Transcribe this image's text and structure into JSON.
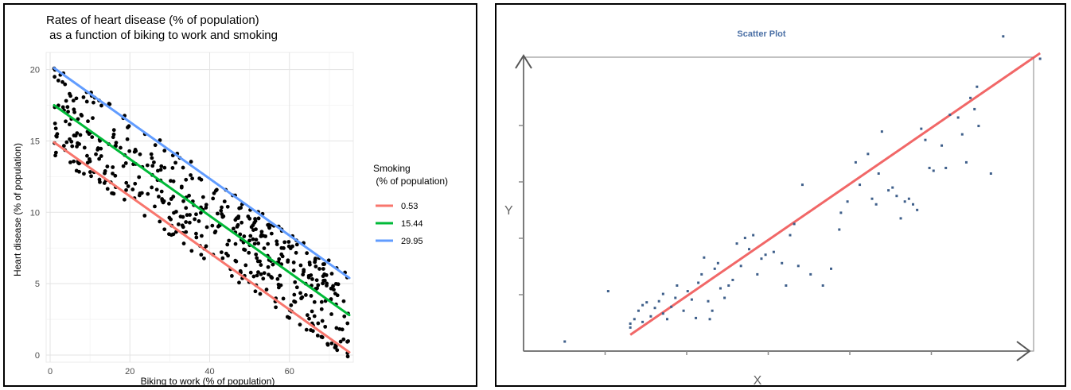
{
  "chart_data": [
    {
      "type": "scatter",
      "title_line1": "Rates of heart disease (% of population)",
      "title_line2": " as a function of biking to work and smoking",
      "xlabel": "Biking to work (% of population)",
      "ylabel": "Heart disease (% of population)",
      "xlim": [
        -1,
        76
      ],
      "ylim": [
        -0.5,
        21.2
      ],
      "xticks": [
        0,
        20,
        40,
        60
      ],
      "xtick_labels": [
        "0",
        "20",
        "40",
        "60"
      ],
      "yticks": [
        0,
        5,
        10,
        15,
        20
      ],
      "ytick_labels": [
        "0",
        "5",
        "10",
        "15",
        "20"
      ],
      "grid": true,
      "legend_position": "right",
      "legend_title_line1": "Smoking",
      "legend_title_line2": " (% of population)",
      "series": [
        {
          "name": "0.53",
          "color": "#F8766D",
          "x": [
            1,
            75
          ],
          "y": [
            14.9,
            0.2
          ]
        },
        {
          "name": "15.44",
          "color": "#00BA38",
          "x": [
            1,
            75
          ],
          "y": [
            17.5,
            2.8
          ]
        },
        {
          "name": "29.95",
          "color": "#619CFF",
          "x": [
            1,
            75
          ],
          "y": [
            20.1,
            5.4
          ]
        }
      ],
      "points": {
        "color": "#000000",
        "count": 498,
        "x_range": [
          1,
          75
        ],
        "y_band_low": [
          14.0,
          -0.4
        ],
        "y_band_high": [
          20.6,
          5.6
        ]
      }
    },
    {
      "type": "scatter",
      "title": "Scatter Plot",
      "xlabel": "X",
      "ylabel": "Y",
      "grid": false,
      "trend": {
        "color": "#EE4C4C",
        "x": [
          1.05,
          6.05
        ],
        "y": [
          0.12,
          5.15
        ]
      },
      "point_color": "#3E5F8A",
      "points": [
        [
          0.25,
          0.0
        ],
        [
          0.78,
          0.9
        ],
        [
          1.05,
          0.25
        ],
        [
          1.05,
          0.32
        ],
        [
          1.1,
          0.4
        ],
        [
          1.15,
          0.55
        ],
        [
          1.2,
          0.35
        ],
        [
          1.2,
          0.65
        ],
        [
          1.25,
          0.7
        ],
        [
          1.3,
          0.45
        ],
        [
          1.35,
          0.6
        ],
        [
          1.4,
          0.72
        ],
        [
          1.45,
          0.5
        ],
        [
          1.45,
          0.85
        ],
        [
          1.5,
          0.4
        ],
        [
          1.55,
          0.62
        ],
        [
          1.6,
          0.78
        ],
        [
          1.62,
          1.0
        ],
        [
          1.7,
          0.55
        ],
        [
          1.75,
          0.9
        ],
        [
          1.8,
          0.75
        ],
        [
          1.85,
          0.42
        ],
        [
          1.88,
          1.05
        ],
        [
          1.92,
          1.2
        ],
        [
          1.95,
          1.5
        ],
        [
          2.0,
          0.72
        ],
        [
          2.02,
          0.4
        ],
        [
          2.05,
          0.55
        ],
        [
          2.08,
          1.3
        ],
        [
          2.12,
          1.4
        ],
        [
          2.15,
          0.95
        ],
        [
          2.2,
          0.78
        ],
        [
          2.25,
          1.0
        ],
        [
          2.3,
          1.1
        ],
        [
          2.35,
          1.75
        ],
        [
          2.4,
          1.35
        ],
        [
          2.45,
          1.85
        ],
        [
          2.5,
          1.65
        ],
        [
          2.55,
          1.9
        ],
        [
          2.6,
          1.2
        ],
        [
          2.65,
          1.48
        ],
        [
          2.7,
          1.55
        ],
        [
          2.8,
          1.6
        ],
        [
          2.9,
          1.4
        ],
        [
          2.95,
          1.0
        ],
        [
          3.0,
          1.9
        ],
        [
          3.05,
          2.1
        ],
        [
          3.1,
          1.35
        ],
        [
          3.15,
          2.8
        ],
        [
          3.25,
          1.2
        ],
        [
          3.4,
          1.0
        ],
        [
          3.5,
          1.3
        ],
        [
          3.6,
          2.0
        ],
        [
          3.62,
          2.3
        ],
        [
          3.7,
          2.5
        ],
        [
          3.8,
          3.2
        ],
        [
          3.85,
          2.8
        ],
        [
          3.95,
          3.35
        ],
        [
          4.0,
          2.55
        ],
        [
          4.05,
          2.45
        ],
        [
          4.08,
          3.0
        ],
        [
          4.12,
          3.75
        ],
        [
          4.2,
          2.7
        ],
        [
          4.25,
          2.75
        ],
        [
          4.3,
          2.6
        ],
        [
          4.35,
          2.2
        ],
        [
          4.4,
          2.5
        ],
        [
          4.45,
          2.55
        ],
        [
          4.5,
          2.45
        ],
        [
          4.55,
          2.35
        ],
        [
          4.6,
          3.8
        ],
        [
          4.65,
          3.6
        ],
        [
          4.7,
          3.1
        ],
        [
          4.75,
          3.05
        ],
        [
          4.85,
          3.5
        ],
        [
          4.9,
          3.1
        ],
        [
          4.95,
          4.05
        ],
        [
          5.05,
          4.0
        ],
        [
          5.1,
          3.7
        ],
        [
          5.15,
          3.2
        ],
        [
          5.2,
          4.35
        ],
        [
          5.25,
          4.15
        ],
        [
          5.28,
          4.55
        ],
        [
          5.3,
          3.85
        ],
        [
          5.45,
          3.0
        ],
        [
          5.6,
          5.45
        ],
        [
          6.05,
          5.05
        ]
      ]
    }
  ]
}
